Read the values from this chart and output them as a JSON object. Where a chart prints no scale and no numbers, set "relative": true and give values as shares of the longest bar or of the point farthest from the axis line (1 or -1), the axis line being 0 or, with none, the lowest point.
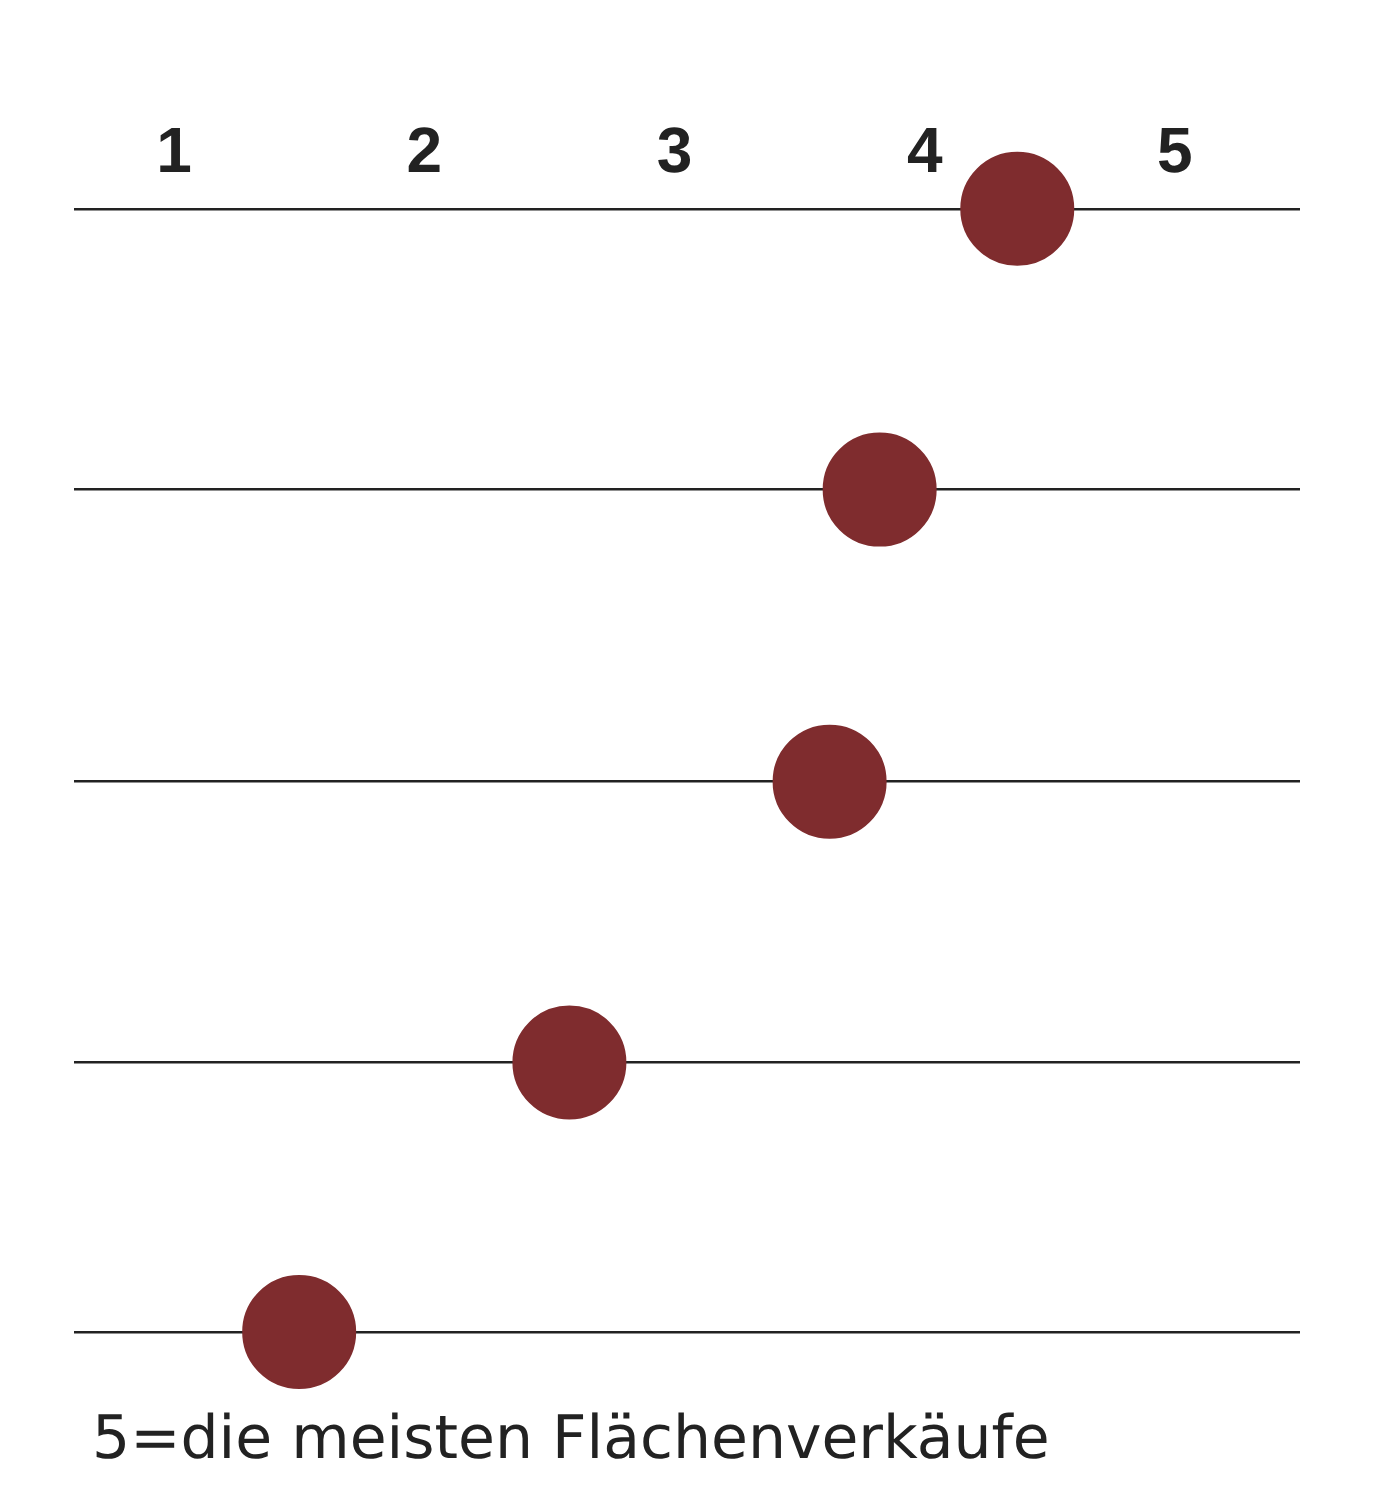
{
  "chart_data": {
    "type": "scatter",
    "relative": true,
    "x": [
      4.37,
      3.82,
      3.62,
      2.58,
      1.5
    ],
    "series": [
      {
        "color": "#7f2c2e",
        "values": [
          1,
          0.75,
          0.49,
          0.24,
          0
        ]
      }
    ],
    "xlim": [
      0.6,
      5.5
    ],
    "xticks": [
      1,
      2,
      3,
      4,
      5
    ],
    "grid": "y",
    "tick_labels": "x",
    "marker": "circle",
    "annotations": [
      "5=die meisten Flächenverkäufe"
    ]
  }
}
